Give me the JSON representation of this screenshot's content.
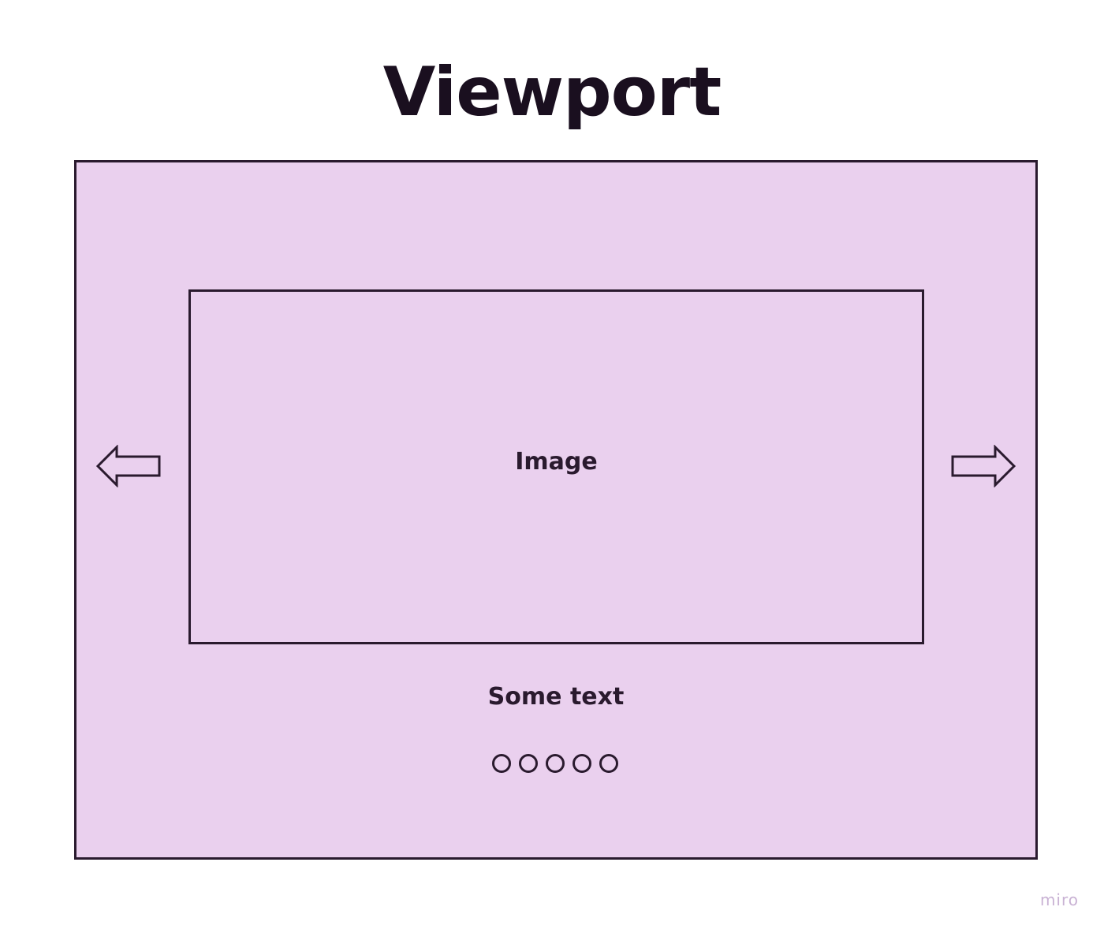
{
  "title": "Viewport",
  "carousel": {
    "image_label": "Image",
    "caption": "Some text",
    "dot_count": 5,
    "prev_icon": "arrow-left-icon",
    "next_icon": "arrow-right-icon"
  },
  "watermark": "miro",
  "colors": {
    "viewport_fill": "#ead0ee",
    "stroke": "#2a1a2e",
    "title": "#1a0f1f",
    "watermark": "#c9b2d4"
  }
}
